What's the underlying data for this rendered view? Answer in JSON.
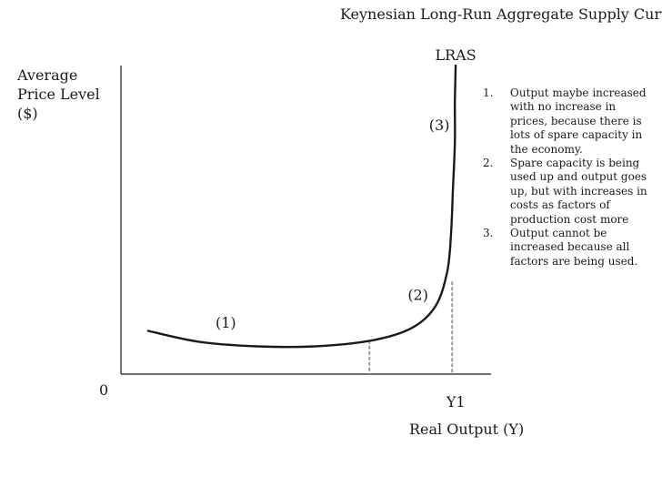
{
  "chart_data": {
    "type": "line",
    "title": "Keynesian Long-Run Aggregate Supply Curve",
    "ylabel_lines": [
      "Average",
      "Price Level",
      "($)"
    ],
    "xlabel": "Real Output (Y)",
    "origin_label": "0",
    "series": [
      {
        "name": "LRAS",
        "points": [
          [
            0.07,
            0.14
          ],
          [
            0.2,
            0.105
          ],
          [
            0.35,
            0.09
          ],
          [
            0.5,
            0.09
          ],
          [
            0.65,
            0.11
          ],
          [
            0.75,
            0.15
          ],
          [
            0.81,
            0.22
          ],
          [
            0.84,
            0.33
          ],
          [
            0.85,
            0.45
          ],
          [
            0.855,
            0.6
          ],
          [
            0.86,
            0.75
          ],
          [
            0.86,
            0.88
          ],
          [
            0.862,
            1.0
          ]
        ]
      }
    ],
    "x_markers": [
      {
        "x": 0.64,
        "y": 0.11,
        "label": ""
      },
      {
        "x": 0.853,
        "y": 0.3,
        "label": "Y1"
      }
    ],
    "region_labels": [
      {
        "text": "(1)",
        "x": 0.27,
        "y": 0.15
      },
      {
        "text": "(2)",
        "x": 0.765,
        "y": 0.24
      },
      {
        "text": "(3)",
        "x": 0.82,
        "y": 0.79
      }
    ],
    "xlim": [
      0,
      1
    ],
    "ylim": [
      0,
      1
    ],
    "grid": false,
    "legend": "none"
  },
  "notes": [
    {
      "num": "1.",
      "text": "Output maybe increased with no increase in prices, because there is lots of spare capacity in the economy."
    },
    {
      "num": "2.",
      "text": "Spare capacity is being used up and output goes up, but with increases in costs as factors of production cost more"
    },
    {
      "num": "3.",
      "text": "Output cannot be increased because all factors are being used."
    }
  ]
}
